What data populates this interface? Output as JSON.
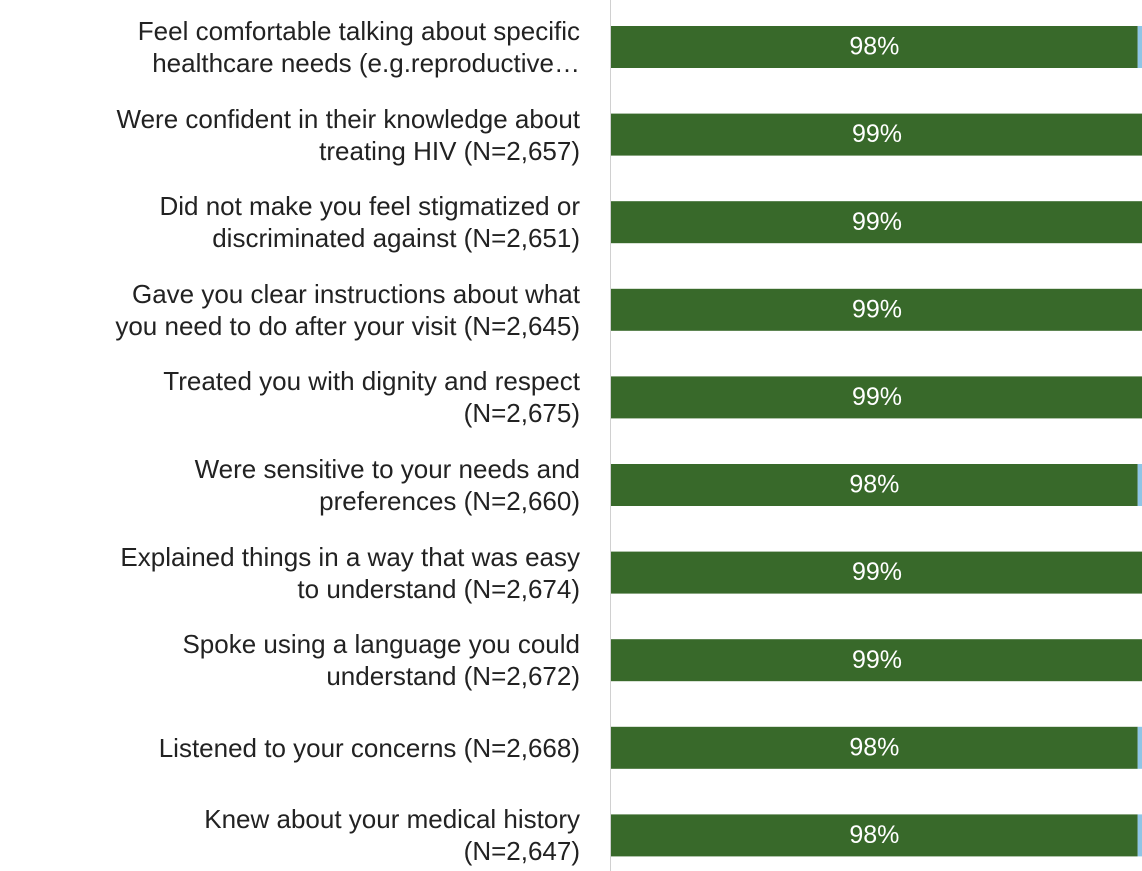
{
  "chart_data": {
    "type": "stacked_bar_horizontal",
    "categories": [
      "Feel comfortable talking about specific\nhealthcare needs (e.g.reproductive…",
      "Were confident in their knowledge about\ntreating HIV (N=2,657)",
      "Did not make you feel stigmatized or\ndiscriminated against (N=2,651)",
      "Gave you clear instructions about what\nyou need to do after your visit (N=2,645)",
      "Treated you with dignity and respect\n(N=2,675)",
      "Were sensitive to your needs and\npreferences (N=2,660)",
      "Explained things in a way that was easy\nto understand (N=2,674)",
      "Spoke using a language you could\nunderstand (N=2,672)",
      "Listened to your concerns (N=2,668)",
      "Knew about your medical history\n(N=2,647)"
    ],
    "series": [
      {
        "color": "#38692a",
        "values": [
          98,
          99,
          99,
          99,
          99,
          98,
          99,
          99,
          98,
          98
        ],
        "value_labels": [
          "98%",
          "99%",
          "99%",
          "99%",
          "99%",
          "98%",
          "99%",
          "99%",
          "98%",
          "98%"
        ]
      },
      {
        "color": "#8ec5e6",
        "values": [
          1,
          1,
          1,
          1,
          1,
          1,
          1,
          1,
          1,
          1
        ]
      }
    ],
    "xlim": [
      0,
      98.8
    ]
  }
}
